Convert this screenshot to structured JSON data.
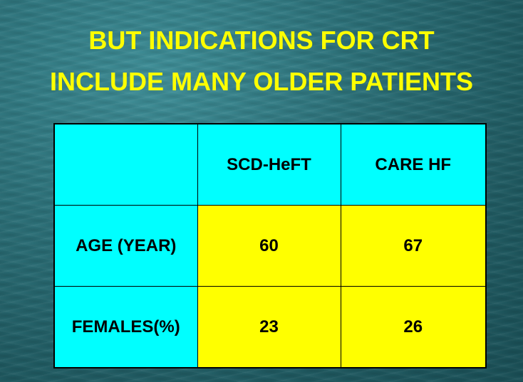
{
  "slide": {
    "title_line1": "BUT INDICATIONS FOR CRT",
    "title_line2": "INCLUDE MANY OLDER PATIENTS"
  },
  "table": {
    "headers": [
      "",
      "SCD-HeFT",
      "CARE HF"
    ],
    "rows": [
      {
        "label": "AGE (YEAR)",
        "values": [
          "60",
          "67"
        ]
      },
      {
        "label": "FEMALES(%)",
        "values": [
          "23",
          "26"
        ]
      }
    ]
  },
  "colors": {
    "title": "#ffff00",
    "header_fill": "#00ffff",
    "value_fill": "#ffff00",
    "background": "#2c7078"
  }
}
